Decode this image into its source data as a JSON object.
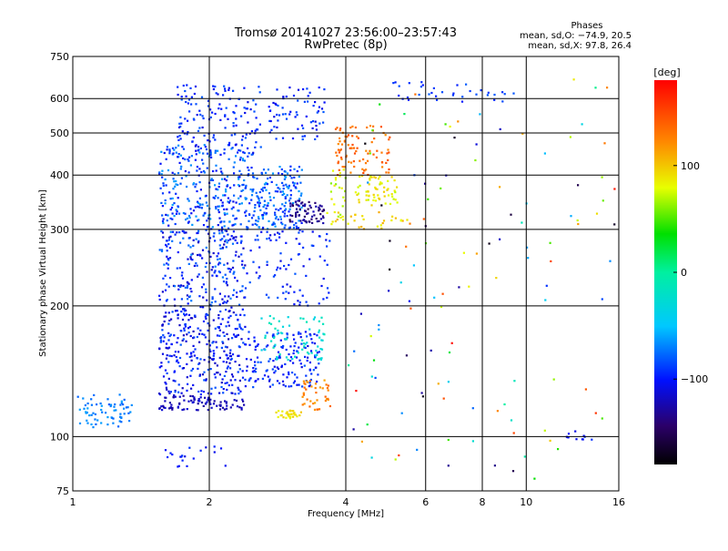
{
  "chart_data": {
    "type": "scatter",
    "title": "Tromsø 20141027 23:56:00–23:57:43",
    "subtitle": "RwPretec (8p)",
    "xlabel": "Frequency [MHz]",
    "ylabel": "Stationary phase Virtual Height [km]",
    "xscale": "log",
    "yscale": "log",
    "xlim": [
      1,
      16
    ],
    "ylim": [
      75,
      750
    ],
    "xticks": [
      1,
      2,
      4,
      6,
      8,
      10,
      16
    ],
    "xtick_labels": [
      "1",
      "2",
      "4",
      "6",
      "8",
      "10",
      "16"
    ],
    "yticks": [
      75,
      100,
      200,
      300,
      400,
      500,
      600,
      750
    ],
    "ytick_labels": [
      "75",
      "100",
      "200",
      "300",
      "400",
      "500",
      "600",
      "750"
    ],
    "grid": true,
    "colorbar": {
      "label": "[deg]",
      "min": -180,
      "max": 180,
      "ticks": [
        100,
        0,
        -100
      ],
      "tick_labels": [
        "100",
        "0",
        "−100"
      ],
      "colormap": "rainbow"
    },
    "stats": {
      "heading": "Phases",
      "line_o": "mean, sd,O: −74.9, 20.5",
      "line_x": "mean, sd,X:  97.8, 26.4"
    },
    "clusters": [
      {
        "f": [
          1.0,
          1.35
        ],
        "h": [
          105,
          125
        ],
        "phase": [
          -80,
          -60
        ],
        "n": 70
      },
      {
        "f": [
          1.55,
          2.0
        ],
        "h": [
          115,
          125
        ],
        "phase": [
          -130,
          -110
        ],
        "n": 60
      },
      {
        "f": [
          2.0,
          2.4
        ],
        "h": [
          115,
          122
        ],
        "phase": [
          -130,
          -115
        ],
        "n": 30
      },
      {
        "f": [
          1.55,
          2.4
        ],
        "h": [
          125,
          200
        ],
        "phase": [
          -120,
          -80
        ],
        "n": 320
      },
      {
        "f": [
          2.4,
          3.5
        ],
        "h": [
          130,
          175
        ],
        "phase": [
          -110,
          -80
        ],
        "n": 160
      },
      {
        "f": [
          1.55,
          2.4
        ],
        "h": [
          200,
          300
        ],
        "phase": [
          -120,
          -70
        ],
        "n": 240
      },
      {
        "f": [
          2.4,
          3.7
        ],
        "h": [
          200,
          300
        ],
        "phase": [
          -110,
          -80
        ],
        "n": 90
      },
      {
        "f": [
          1.55,
          2.4
        ],
        "h": [
          300,
          470
        ],
        "phase": [
          -110,
          -60
        ],
        "n": 280
      },
      {
        "f": [
          2.4,
          3.2
        ],
        "h": [
          300,
          420
        ],
        "phase": [
          -100,
          -60
        ],
        "n": 200
      },
      {
        "f": [
          3.0,
          3.6
        ],
        "h": [
          310,
          350
        ],
        "phase": [
          -150,
          -120
        ],
        "n": 70
      },
      {
        "f": [
          1.7,
          2.6
        ],
        "h": [
          440,
          650
        ],
        "phase": [
          -110,
          -80
        ],
        "n": 150
      },
      {
        "f": [
          2.7,
          3.6
        ],
        "h": [
          480,
          650
        ],
        "phase": [
          -110,
          -80
        ],
        "n": 70
      },
      {
        "f": [
          3.7,
          4.0
        ],
        "h": [
          300,
          420
        ],
        "phase": [
          60,
          90
        ],
        "n": 25
      },
      {
        "f": [
          3.8,
          5.0
        ],
        "h": [
          400,
          520
        ],
        "phase": [
          120,
          150
        ],
        "n": 90
      },
      {
        "f": [
          4.2,
          5.2
        ],
        "h": [
          340,
          400
        ],
        "phase": [
          70,
          100
        ],
        "n": 60
      },
      {
        "f": [
          2.8,
          3.2
        ],
        "h": [
          110,
          115
        ],
        "phase": [
          80,
          100
        ],
        "n": 30
      },
      {
        "f": [
          3.2,
          3.7
        ],
        "h": [
          115,
          135
        ],
        "phase": [
          110,
          140
        ],
        "n": 40
      },
      {
        "f": [
          2.6,
          3.6
        ],
        "h": [
          150,
          190
        ],
        "phase": [
          -40,
          -10
        ],
        "n": 70
      },
      {
        "f": [
          3.6,
          5.5
        ],
        "h": [
          300,
          330
        ],
        "phase": [
          80,
          110
        ],
        "n": 30
      },
      {
        "f": [
          5.0,
          9.5
        ],
        "h": [
          590,
          660
        ],
        "phase": [
          -100,
          -80
        ],
        "n": 35
      },
      {
        "f": [
          4.0,
          16.0
        ],
        "h": [
          80,
          680
        ],
        "phase": [
          -180,
          180
        ],
        "n": 120
      },
      {
        "f": [
          1.6,
          2.3
        ],
        "h": [
          85,
          95
        ],
        "phase": [
          -110,
          -90
        ],
        "n": 20
      },
      {
        "f": [
          12.0,
          14.0
        ],
        "h": [
          98,
          103
        ],
        "phase": [
          -110,
          -90
        ],
        "n": 10
      }
    ]
  }
}
